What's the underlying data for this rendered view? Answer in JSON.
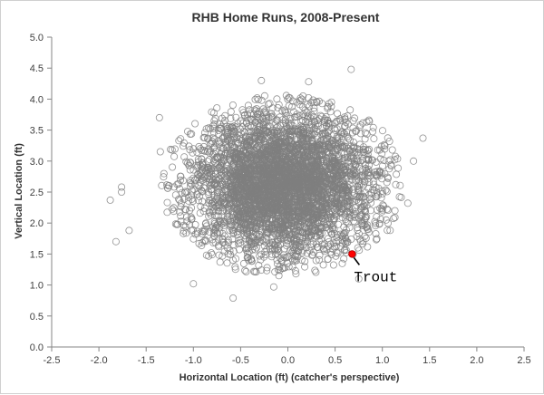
{
  "chart_data": {
    "type": "scatter",
    "title": "RHB Home Runs, 2008-Present",
    "xlabel": "Horizontal Location (ft) (catcher's perspective)",
    "ylabel": "Vertical Location (ft)",
    "xlim": [
      -2.5,
      2.5
    ],
    "ylim": [
      0.0,
      5.0
    ],
    "xticks": [
      "-2.5",
      "-2.0",
      "-1.5",
      "-1.0",
      "-0.5",
      "0.0",
      "0.5",
      "1.0",
      "1.5",
      "2.0",
      "2.5"
    ],
    "yticks": [
      "0.0",
      "0.5",
      "1.0",
      "1.5",
      "2.0",
      "2.5",
      "3.0",
      "3.5",
      "4.0",
      "4.5",
      "5.0"
    ],
    "grid": false,
    "legend": "none",
    "series": [
      {
        "marker": "open-circle",
        "color": "#7f7f7f",
        "distribution": {
          "x_mean": -0.05,
          "x_sd": 0.5,
          "y_mean": 2.62,
          "y_sd": 0.58,
          "n": 4500
        },
        "notable_points": [
          {
            "x": -1.88,
            "y": 2.37
          },
          {
            "x": -1.82,
            "y": 1.7
          },
          {
            "x": -1.76,
            "y": 2.58
          },
          {
            "x": -1.76,
            "y": 2.5
          },
          {
            "x": -1.68,
            "y": 1.88
          },
          {
            "x": -1.36,
            "y": 3.7
          },
          {
            "x": 1.43,
            "y": 3.37
          },
          {
            "x": 1.27,
            "y": 2.32
          },
          {
            "x": 0.67,
            "y": 4.48
          },
          {
            "x": 0.22,
            "y": 4.28
          },
          {
            "x": -0.28,
            "y": 4.3
          },
          {
            "x": -0.58,
            "y": 0.79
          },
          {
            "x": -0.15,
            "y": 0.97
          },
          {
            "x": 0.75,
            "y": 1.1
          },
          {
            "x": -1.35,
            "y": 3.15
          },
          {
            "x": 1.33,
            "y": 3.0
          },
          {
            "x": -1.0,
            "y": 1.02
          }
        ]
      }
    ],
    "highlight": {
      "label": "Trout",
      "x": 0.68,
      "y": 1.5,
      "color": "#ff0000"
    }
  }
}
